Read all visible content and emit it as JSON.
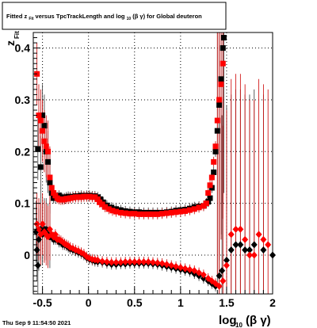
{
  "chart_data": {
    "type": "scatter",
    "title_parts": {
      "a": "Fitted  z",
      "a_sub": "Fit",
      "b": "  versus TpcTrackLength and log",
      "b_sub": "10",
      "c": "(β  γ) for Global deuteron"
    },
    "ylabel": {
      "main": "z",
      "sub": "Fit"
    },
    "xlabel": {
      "main": "log",
      "sub": "10",
      "tail": "(β γ)"
    },
    "xlim": [
      -0.6,
      2.0
    ],
    "ylim": [
      -0.075,
      0.43
    ],
    "x_ticks": [
      {
        "v": -0.5,
        "label": "-0.5"
      },
      {
        "v": 0,
        "label": "0"
      },
      {
        "v": 0.5,
        "label": "0.5"
      },
      {
        "v": 1,
        "label": "1"
      },
      {
        "v": 1.5,
        "label": "1.5"
      },
      {
        "v": 2,
        "label": "2"
      }
    ],
    "y_ticks": [
      {
        "v": 0,
        "label": "0"
      },
      {
        "v": 0.1,
        "label": "0.1"
      },
      {
        "v": 0.2,
        "label": "0.2"
      },
      {
        "v": 0.3,
        "label": "0.3"
      },
      {
        "v": 0.4,
        "label": "0.4"
      }
    ],
    "grid": true,
    "timestamp": "Thu Sep  9 11:54:50 2021",
    "series": [
      {
        "marker": "square",
        "color": "#000000",
        "points": [
          [
            -0.5,
            0.27
          ],
          [
            -0.48,
            0.25
          ],
          [
            -0.46,
            0.2
          ],
          [
            -0.44,
            0.18
          ],
          [
            -0.42,
            0.14
          ],
          [
            -0.4,
            0.12
          ],
          [
            -0.38,
            0.11
          ],
          [
            -0.36,
            0.11
          ],
          [
            -0.34,
            0.112
          ],
          [
            -0.32,
            0.115
          ],
          [
            -0.3,
            0.112
          ],
          [
            -0.28,
            0.11
          ],
          [
            -0.26,
            0.11
          ],
          [
            -0.24,
            0.112
          ],
          [
            -0.22,
            0.113
          ],
          [
            -0.2,
            0.112
          ],
          [
            -0.17,
            0.113
          ],
          [
            -0.14,
            0.114
          ],
          [
            -0.11,
            0.114
          ],
          [
            -0.08,
            0.115
          ],
          [
            -0.05,
            0.114
          ],
          [
            -0.02,
            0.115
          ],
          [
            0.01,
            0.115
          ],
          [
            0.04,
            0.114
          ],
          [
            0.07,
            0.114
          ],
          [
            0.1,
            0.112
          ],
          [
            0.13,
            0.108
          ],
          [
            0.16,
            0.102
          ],
          [
            0.2,
            0.096
          ],
          [
            0.25,
            0.092
          ],
          [
            0.3,
            0.089
          ],
          [
            0.35,
            0.087
          ],
          [
            0.4,
            0.085
          ],
          [
            0.45,
            0.084
          ],
          [
            0.5,
            0.083
          ],
          [
            0.55,
            0.083
          ],
          [
            0.6,
            0.082
          ],
          [
            0.65,
            0.082
          ],
          [
            0.7,
            0.082
          ],
          [
            0.75,
            0.082
          ],
          [
            0.8,
            0.082
          ],
          [
            0.85,
            0.083
          ],
          [
            0.9,
            0.084
          ],
          [
            0.95,
            0.086
          ],
          [
            1.0,
            0.087
          ],
          [
            1.05,
            0.088
          ],
          [
            1.1,
            0.09
          ],
          [
            1.15,
            0.093
          ],
          [
            1.2,
            0.094
          ],
          [
            1.25,
            0.095
          ],
          [
            1.28,
            0.1
          ],
          [
            1.3,
            0.103
          ],
          [
            1.32,
            0.11
          ],
          [
            1.34,
            0.13
          ],
          [
            1.36,
            0.16
          ],
          [
            1.38,
            0.2
          ],
          [
            1.4,
            0.24
          ],
          [
            1.42,
            0.29
          ],
          [
            1.44,
            0.34
          ],
          [
            1.46,
            0.4
          ],
          [
            1.47,
            0.42
          ],
          [
            -0.55,
            0.205
          ],
          [
            -0.52,
            0.17
          ]
        ]
      },
      {
        "marker": "square",
        "color": "#ff0000",
        "points": [
          [
            -0.56,
            0.35
          ],
          [
            -0.54,
            0.27
          ],
          [
            -0.52,
            0.26
          ],
          [
            -0.5,
            0.24
          ],
          [
            -0.48,
            0.22
          ],
          [
            -0.46,
            0.21
          ],
          [
            -0.44,
            0.2
          ],
          [
            -0.42,
            0.15
          ],
          [
            -0.4,
            0.13
          ],
          [
            -0.38,
            0.12
          ],
          [
            -0.36,
            0.115
          ],
          [
            -0.34,
            0.11
          ],
          [
            -0.32,
            0.108
          ],
          [
            -0.3,
            0.107
          ],
          [
            -0.28,
            0.107
          ],
          [
            -0.26,
            0.108
          ],
          [
            -0.24,
            0.109
          ],
          [
            -0.22,
            0.109
          ],
          [
            -0.2,
            0.11
          ],
          [
            -0.17,
            0.111
          ],
          [
            -0.14,
            0.112
          ],
          [
            -0.11,
            0.112
          ],
          [
            -0.08,
            0.112
          ],
          [
            -0.05,
            0.113
          ],
          [
            -0.02,
            0.113
          ],
          [
            0.01,
            0.113
          ],
          [
            0.04,
            0.112
          ],
          [
            0.07,
            0.112
          ],
          [
            0.1,
            0.108
          ],
          [
            0.12,
            0.102
          ],
          [
            0.15,
            0.098
          ],
          [
            0.18,
            0.093
          ],
          [
            0.22,
            0.089
          ],
          [
            0.26,
            0.086
          ],
          [
            0.3,
            0.084
          ],
          [
            0.35,
            0.082
          ],
          [
            0.4,
            0.081
          ],
          [
            0.45,
            0.08
          ],
          [
            0.5,
            0.08
          ],
          [
            0.55,
            0.079
          ],
          [
            0.6,
            0.079
          ],
          [
            0.65,
            0.079
          ],
          [
            0.7,
            0.079
          ],
          [
            0.75,
            0.079
          ],
          [
            0.8,
            0.08
          ],
          [
            0.85,
            0.081
          ],
          [
            0.9,
            0.082
          ],
          [
            0.95,
            0.083
          ],
          [
            1.0,
            0.084
          ],
          [
            1.05,
            0.085
          ],
          [
            1.1,
            0.087
          ],
          [
            1.15,
            0.089
          ],
          [
            1.2,
            0.092
          ],
          [
            1.25,
            0.095
          ],
          [
            1.28,
            0.1
          ],
          [
            1.3,
            0.12
          ],
          [
            1.32,
            0.135
          ],
          [
            1.34,
            0.15
          ],
          [
            1.36,
            0.18
          ],
          [
            1.38,
            0.21
          ],
          [
            1.4,
            0.26
          ],
          [
            1.42,
            0.3
          ],
          [
            1.44,
            0.33
          ],
          [
            1.46,
            0.37
          ]
        ]
      },
      {
        "marker": "diamond",
        "color": "#000000",
        "points": [
          [
            -0.56,
            0.01
          ],
          [
            -0.54,
            0.03
          ],
          [
            -0.52,
            0.05
          ],
          [
            -0.5,
            0.04
          ],
          [
            -0.48,
            0.05
          ],
          [
            -0.46,
            0.05
          ],
          [
            -0.44,
            0.04
          ],
          [
            -0.42,
            0.035
          ],
          [
            -0.4,
            0.035
          ],
          [
            -0.38,
            0.03
          ],
          [
            -0.36,
            0.03
          ],
          [
            -0.34,
            0.03
          ],
          [
            -0.32,
            0.025
          ],
          [
            -0.3,
            0.025
          ],
          [
            -0.28,
            0.02
          ],
          [
            -0.26,
            0.02
          ],
          [
            -0.24,
            0.018
          ],
          [
            -0.22,
            0.015
          ],
          [
            -0.2,
            0.012
          ],
          [
            -0.17,
            0.01
          ],
          [
            -0.14,
            0.008
          ],
          [
            -0.11,
            0.005
          ],
          [
            -0.08,
            0.003
          ],
          [
            -0.05,
            0.0
          ],
          [
            -0.02,
            -0.005
          ],
          [
            0.01,
            -0.008
          ],
          [
            0.04,
            -0.01
          ],
          [
            0.07,
            -0.012
          ],
          [
            0.1,
            -0.013
          ],
          [
            0.15,
            -0.014
          ],
          [
            0.2,
            -0.016
          ],
          [
            0.25,
            -0.018
          ],
          [
            0.3,
            -0.018
          ],
          [
            0.35,
            -0.017
          ],
          [
            0.4,
            -0.017
          ],
          [
            0.45,
            -0.016
          ],
          [
            0.5,
            -0.016
          ],
          [
            0.55,
            -0.016
          ],
          [
            0.6,
            -0.016
          ],
          [
            0.65,
            -0.016
          ],
          [
            0.7,
            -0.017
          ],
          [
            0.75,
            -0.018
          ],
          [
            0.8,
            -0.02
          ],
          [
            0.85,
            -0.022
          ],
          [
            0.9,
            -0.024
          ],
          [
            0.95,
            -0.026
          ],
          [
            1.0,
            -0.028
          ],
          [
            1.05,
            -0.03
          ],
          [
            1.1,
            -0.032
          ],
          [
            1.15,
            -0.036
          ],
          [
            1.2,
            -0.04
          ],
          [
            1.25,
            -0.045
          ],
          [
            1.3,
            -0.05
          ],
          [
            1.34,
            -0.055
          ],
          [
            1.38,
            -0.06
          ],
          [
            1.42,
            -0.04
          ],
          [
            1.45,
            -0.03
          ],
          [
            1.5,
            -0.01
          ],
          [
            1.55,
            0.01
          ],
          [
            1.6,
            0.02
          ],
          [
            1.65,
            0.02
          ],
          [
            1.7,
            0.01
          ],
          [
            1.75,
            0.01
          ],
          [
            1.8,
            0.02
          ],
          [
            1.9,
            0.01
          ],
          [
            2.0,
            0.0
          ],
          [
            -0.57,
            0.045
          ],
          [
            -0.55,
            -0.02
          ]
        ]
      },
      {
        "marker": "diamond",
        "color": "#ff0000",
        "points": [
          [
            -0.56,
            0.06
          ],
          [
            -0.54,
            0.05
          ],
          [
            -0.52,
            0.04
          ],
          [
            -0.5,
            0.06
          ],
          [
            -0.48,
            0.045
          ],
          [
            -0.46,
            0.04
          ],
          [
            -0.44,
            0.035
          ],
          [
            -0.42,
            0.05
          ],
          [
            -0.4,
            0.04
          ],
          [
            -0.38,
            0.035
          ],
          [
            -0.36,
            0.04
          ],
          [
            -0.34,
            0.03
          ],
          [
            -0.32,
            0.03
          ],
          [
            -0.3,
            0.028
          ],
          [
            -0.28,
            0.025
          ],
          [
            -0.26,
            0.022
          ],
          [
            -0.24,
            0.02
          ],
          [
            -0.22,
            0.018
          ],
          [
            -0.2,
            0.015
          ],
          [
            -0.17,
            0.013
          ],
          [
            -0.14,
            0.01
          ],
          [
            -0.11,
            0.008
          ],
          [
            -0.08,
            0.005
          ],
          [
            -0.05,
            0.002
          ],
          [
            -0.02,
            -0.003
          ],
          [
            0.01,
            -0.006
          ],
          [
            0.04,
            -0.008
          ],
          [
            0.07,
            -0.009
          ],
          [
            0.1,
            -0.01
          ],
          [
            0.15,
            -0.012
          ],
          [
            0.2,
            -0.013
          ],
          [
            0.25,
            -0.014
          ],
          [
            0.3,
            -0.014
          ],
          [
            0.35,
            -0.014
          ],
          [
            0.4,
            -0.013
          ],
          [
            0.45,
            -0.013
          ],
          [
            0.5,
            -0.013
          ],
          [
            0.55,
            -0.013
          ],
          [
            0.6,
            -0.013
          ],
          [
            0.65,
            -0.013
          ],
          [
            0.7,
            -0.014
          ],
          [
            0.75,
            -0.015
          ],
          [
            0.8,
            -0.016
          ],
          [
            0.85,
            -0.018
          ],
          [
            0.9,
            -0.02
          ],
          [
            0.95,
            -0.022
          ],
          [
            1.0,
            -0.024
          ],
          [
            1.05,
            -0.026
          ],
          [
            1.1,
            -0.028
          ],
          [
            1.15,
            -0.03
          ],
          [
            1.2,
            -0.034
          ],
          [
            1.25,
            -0.038
          ],
          [
            1.3,
            -0.045
          ],
          [
            1.34,
            -0.05
          ],
          [
            1.38,
            -0.055
          ],
          [
            1.42,
            -0.06
          ],
          [
            1.46,
            -0.05
          ],
          [
            1.5,
            -0.02
          ],
          [
            1.55,
            0.04
          ],
          [
            1.6,
            0.05
          ],
          [
            1.65,
            0.05
          ],
          [
            1.7,
            0.03
          ],
          [
            1.75,
            0.0
          ],
          [
            1.8,
            0.0
          ],
          [
            1.85,
            0.04
          ],
          [
            1.9,
            0.03
          ],
          [
            1.95,
            0.02
          ]
        ]
      }
    ]
  }
}
